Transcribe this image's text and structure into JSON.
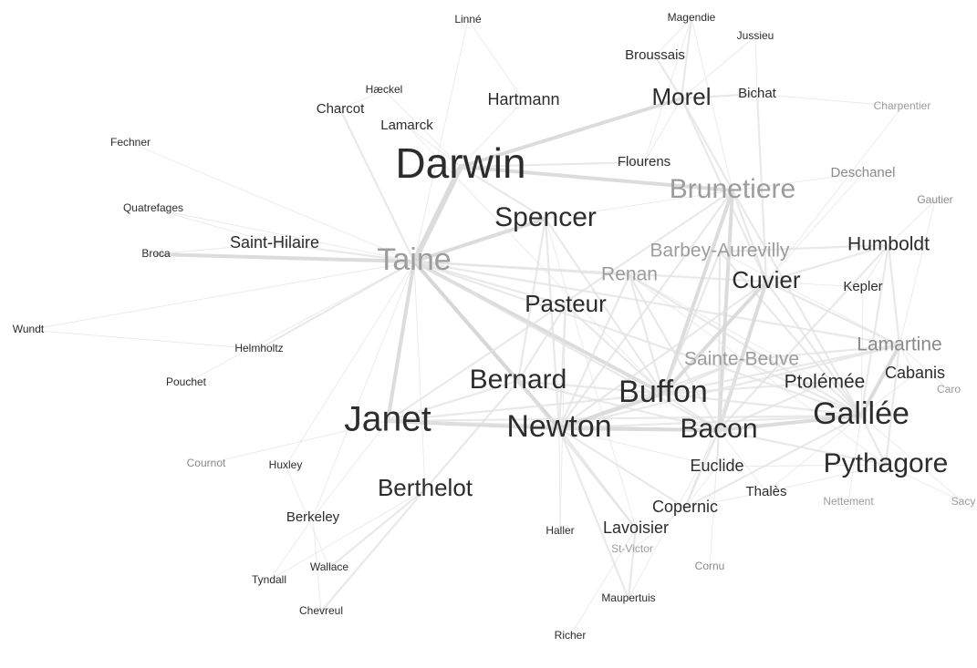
{
  "nodes": [
    {
      "id": "linne",
      "label": "Linné",
      "size": 1,
      "tone": "dark"
    },
    {
      "id": "magendie",
      "label": "Magendie",
      "size": 1,
      "tone": "dark"
    },
    {
      "id": "jussieu",
      "label": "Jussieu",
      "size": 1,
      "tone": "dark"
    },
    {
      "id": "broussais",
      "label": "Broussais",
      "size": 2,
      "tone": "dark"
    },
    {
      "id": "haeckel",
      "label": "Hæckel",
      "size": 1,
      "tone": "dark"
    },
    {
      "id": "charcot",
      "label": "Charcot",
      "size": 2,
      "tone": "dark"
    },
    {
      "id": "hartmann",
      "label": "Hartmann",
      "size": 3,
      "tone": "dark"
    },
    {
      "id": "morel",
      "label": "Morel",
      "size": 5,
      "tone": "dark"
    },
    {
      "id": "bichat",
      "label": "Bichat",
      "size": 2,
      "tone": "dark"
    },
    {
      "id": "charpentier",
      "label": "Charpentier",
      "size": 1,
      "tone": "light"
    },
    {
      "id": "lamarck",
      "label": "Lamarck",
      "size": 2,
      "tone": "dark"
    },
    {
      "id": "fechner",
      "label": "Fechner",
      "size": 1,
      "tone": "dark"
    },
    {
      "id": "darwin",
      "label": "Darwin",
      "size": 9,
      "tone": "dark"
    },
    {
      "id": "flourens",
      "label": "Flourens",
      "size": 2,
      "tone": "dark"
    },
    {
      "id": "deschanel",
      "label": "Deschanel",
      "size": 2,
      "tone": "mid"
    },
    {
      "id": "brunetiere",
      "label": "Brunetiere",
      "size": 6,
      "tone": "light"
    },
    {
      "id": "gautier",
      "label": "Gautier",
      "size": 1,
      "tone": "mid"
    },
    {
      "id": "quatrefages",
      "label": "Quatrefages",
      "size": 1,
      "tone": "dark"
    },
    {
      "id": "spencer",
      "label": "Spencer",
      "size": 6,
      "tone": "dark"
    },
    {
      "id": "saint-hilaire",
      "label": "Saint-Hilaire",
      "size": 3,
      "tone": "dark"
    },
    {
      "id": "broca",
      "label": "Broca",
      "size": 1,
      "tone": "dark"
    },
    {
      "id": "taine",
      "label": "Taine",
      "size": 7,
      "tone": "light"
    },
    {
      "id": "barbey-aurevilly",
      "label": "Barbey-Aurevilly",
      "size": 4,
      "tone": "light"
    },
    {
      "id": "humboldt",
      "label": "Humboldt",
      "size": 4,
      "tone": "dark"
    },
    {
      "id": "renan",
      "label": "Renan",
      "size": 4,
      "tone": "light"
    },
    {
      "id": "cuvier",
      "label": "Cuvier",
      "size": 5,
      "tone": "dark"
    },
    {
      "id": "kepler",
      "label": "Kepler",
      "size": 2,
      "tone": "dark"
    },
    {
      "id": "pasteur",
      "label": "Pasteur",
      "size": 5,
      "tone": "dark"
    },
    {
      "id": "wundt",
      "label": "Wundt",
      "size": 1,
      "tone": "dark"
    },
    {
      "id": "helmholtz",
      "label": "Helmholtz",
      "size": 1,
      "tone": "dark"
    },
    {
      "id": "sainte-beuve",
      "label": "Sainte-Beuve",
      "size": 4,
      "tone": "light"
    },
    {
      "id": "lamartine",
      "label": "Lamartine",
      "size": 4,
      "tone": "mid"
    },
    {
      "id": "pouchet",
      "label": "Pouchet",
      "size": 1,
      "tone": "dark"
    },
    {
      "id": "bernard",
      "label": "Bernard",
      "size": 6,
      "tone": "dark"
    },
    {
      "id": "buffon",
      "label": "Buffon",
      "size": 7,
      "tone": "dark"
    },
    {
      "id": "ptolemee",
      "label": "Ptolémée",
      "size": 4,
      "tone": "dark"
    },
    {
      "id": "cabanis",
      "label": "Cabanis",
      "size": 3,
      "tone": "dark"
    },
    {
      "id": "caro",
      "label": "Caro",
      "size": 1,
      "tone": "light"
    },
    {
      "id": "janet",
      "label": "Janet",
      "size": 8,
      "tone": "dark"
    },
    {
      "id": "newton",
      "label": "Newton",
      "size": 7,
      "tone": "dark"
    },
    {
      "id": "bacon",
      "label": "Bacon",
      "size": 6,
      "tone": "dark"
    },
    {
      "id": "galilee",
      "label": "Galilée",
      "size": 7,
      "tone": "dark"
    },
    {
      "id": "cournot",
      "label": "Cournot",
      "size": 1,
      "tone": "mid"
    },
    {
      "id": "huxley",
      "label": "Huxley",
      "size": 1,
      "tone": "dark"
    },
    {
      "id": "euclide",
      "label": "Euclide",
      "size": 3,
      "tone": "dark"
    },
    {
      "id": "pythagore",
      "label": "Pythagore",
      "size": 6,
      "tone": "dark"
    },
    {
      "id": "berthelot",
      "label": "Berthelot",
      "size": 5,
      "tone": "dark"
    },
    {
      "id": "thales",
      "label": "Thalès",
      "size": 2,
      "tone": "dark"
    },
    {
      "id": "nettement",
      "label": "Nettement",
      "size": 1,
      "tone": "light"
    },
    {
      "id": "sacy",
      "label": "Sacy",
      "size": 1,
      "tone": "light"
    },
    {
      "id": "copernic",
      "label": "Copernic",
      "size": 3,
      "tone": "dark"
    },
    {
      "id": "berkeley",
      "label": "Berkeley",
      "size": 2,
      "tone": "dark"
    },
    {
      "id": "haller",
      "label": "Haller",
      "size": 1,
      "tone": "dark"
    },
    {
      "id": "lavoisier",
      "label": "Lavoisier",
      "size": 3,
      "tone": "dark"
    },
    {
      "id": "st-victor",
      "label": "St-Victor",
      "size": 1,
      "tone": "light"
    },
    {
      "id": "tyndall",
      "label": "Tyndall",
      "size": 1,
      "tone": "dark"
    },
    {
      "id": "wallace",
      "label": "Wallace",
      "size": 1,
      "tone": "dark"
    },
    {
      "id": "cornu",
      "label": "Cornu",
      "size": 1,
      "tone": "mid"
    },
    {
      "id": "chevreul",
      "label": "Chevreul",
      "size": 1,
      "tone": "dark"
    },
    {
      "id": "maupertuis",
      "label": "Maupertuis",
      "size": 1,
      "tone": "dark"
    },
    {
      "id": "richer",
      "label": "Richer",
      "size": 1,
      "tone": "dark"
    }
  ],
  "edges": [
    [
      "taine",
      "darwin",
      4
    ],
    [
      "taine",
      "spencer",
      3
    ],
    [
      "taine",
      "broca",
      3
    ],
    [
      "taine",
      "saint-hilaire",
      2
    ],
    [
      "taine",
      "helmholtz",
      2
    ],
    [
      "taine",
      "janet",
      3
    ],
    [
      "taine",
      "bernard",
      3
    ],
    [
      "taine",
      "newton",
      3
    ],
    [
      "taine",
      "buffon",
      3
    ],
    [
      "taine",
      "bacon",
      2
    ],
    [
      "taine",
      "charcot",
      2
    ],
    [
      "taine",
      "pasteur",
      2
    ],
    [
      "taine",
      "cuvier",
      2
    ],
    [
      "taine",
      "linne",
      1
    ],
    [
      "taine",
      "fechner",
      1
    ],
    [
      "taine",
      "quatrefages",
      1
    ],
    [
      "taine",
      "wundt",
      1
    ],
    [
      "taine",
      "lamartine",
      2
    ],
    [
      "taine",
      "galilee",
      2
    ],
    [
      "taine",
      "berkeley",
      1
    ],
    [
      "taine",
      "renan",
      2
    ],
    [
      "taine",
      "berthelot",
      1
    ],
    [
      "taine",
      "pouchet",
      1
    ],
    [
      "taine",
      "huxley",
      1
    ],
    [
      "darwin",
      "morel",
      3
    ],
    [
      "darwin",
      "brunetiere",
      3
    ],
    [
      "darwin",
      "flourens",
      2
    ],
    [
      "darwin",
      "spencer",
      2
    ],
    [
      "darwin",
      "hartmann",
      1
    ],
    [
      "darwin",
      "lamarck",
      1
    ],
    [
      "brunetiere",
      "buffon",
      3
    ],
    [
      "brunetiere",
      "bacon",
      3
    ],
    [
      "brunetiere",
      "newton",
      2
    ],
    [
      "brunetiere",
      "janet",
      2
    ],
    [
      "brunetiere",
      "morel",
      2
    ],
    [
      "brunetiere",
      "galilee",
      2
    ],
    [
      "brunetiere",
      "cuvier",
      2
    ],
    [
      "brunetiere",
      "magendie",
      1
    ],
    [
      "brunetiere",
      "deschanel",
      1
    ],
    [
      "morel",
      "magendie",
      2
    ],
    [
      "morel",
      "broussais",
      2
    ],
    [
      "morel",
      "bichat",
      2
    ],
    [
      "morel",
      "cuvier",
      2
    ],
    [
      "morel",
      "jussieu",
      1
    ],
    [
      "bichat",
      "jussieu",
      1
    ],
    [
      "bichat",
      "cuvier",
      2
    ],
    [
      "bichat",
      "charpentier",
      1
    ],
    [
      "spencer",
      "newton",
      2
    ],
    [
      "spencer",
      "bernard",
      2
    ],
    [
      "spencer",
      "buffon",
      2
    ],
    [
      "spencer",
      "lavoisier",
      1
    ],
    [
      "pasteur",
      "bernard",
      2
    ],
    [
      "pasteur",
      "newton",
      2
    ],
    [
      "pasteur",
      "buffon",
      2
    ],
    [
      "pasteur",
      "haller",
      1
    ],
    [
      "renan",
      "bacon",
      2
    ],
    [
      "renan",
      "buffon",
      2
    ],
    [
      "renan",
      "galilee",
      2
    ],
    [
      "renan",
      "newton",
      2
    ],
    [
      "renan",
      "pythagore",
      1
    ],
    [
      "renan",
      "ptolemee",
      1
    ],
    [
      "barbey-aurevilly",
      "buffon",
      2
    ],
    [
      "barbey-aurevilly",
      "bacon",
      2
    ],
    [
      "barbey-aurevilly",
      "humboldt",
      2
    ],
    [
      "barbey-aurevilly",
      "galilee",
      2
    ],
    [
      "barbey-aurevilly",
      "lamartine",
      1
    ],
    [
      "cuvier",
      "bacon",
      3
    ],
    [
      "cuvier",
      "buffon",
      3
    ],
    [
      "cuvier",
      "newton",
      2
    ],
    [
      "cuvier",
      "lamartine",
      2
    ],
    [
      "cuvier",
      "humboldt",
      2
    ],
    [
      "cuvier",
      "galilee",
      2
    ],
    [
      "cuvier",
      "kepler",
      1
    ],
    [
      "sainte-beuve",
      "buffon",
      2
    ],
    [
      "sainte-beuve",
      "newton",
      2
    ],
    [
      "sainte-beuve",
      "bacon",
      2
    ],
    [
      "sainte-beuve",
      "galilee",
      2
    ],
    [
      "sainte-beuve",
      "copernic",
      1
    ],
    [
      "sainte-beuve",
      "lamartine",
      2
    ],
    [
      "lamartine",
      "galilee",
      3
    ],
    [
      "lamartine",
      "pythagore",
      2
    ],
    [
      "lamartine",
      "humboldt",
      2
    ],
    [
      "lamartine",
      "newton",
      2
    ],
    [
      "lamartine",
      "cabanis",
      1
    ],
    [
      "lamartine",
      "caro",
      1
    ],
    [
      "lamartine",
      "buffon",
      2
    ],
    [
      "humboldt",
      "galilee",
      2
    ],
    [
      "humboldt",
      "kepler",
      1
    ],
    [
      "humboldt",
      "gautier",
      1
    ],
    [
      "humboldt",
      "bacon",
      2
    ],
    [
      "bernard",
      "newton",
      3
    ],
    [
      "bernard",
      "buffon",
      2
    ],
    [
      "bernard",
      "berthelot",
      2
    ],
    [
      "bernard",
      "lavoisier",
      2
    ],
    [
      "bernard",
      "bacon",
      2
    ],
    [
      "bernard",
      "janet",
      2
    ],
    [
      "janet",
      "newton",
      3
    ],
    [
      "janet",
      "bacon",
      2
    ],
    [
      "janet",
      "buffon",
      2
    ],
    [
      "janet",
      "galilee",
      2
    ],
    [
      "janet",
      "berkeley",
      1
    ],
    [
      "janet",
      "cournot",
      1
    ],
    [
      "newton",
      "buffon",
      3
    ],
    [
      "newton",
      "bacon",
      3
    ],
    [
      "newton",
      "galilee",
      2
    ],
    [
      "newton",
      "lavoisier",
      2
    ],
    [
      "newton",
      "copernic",
      2
    ],
    [
      "newton",
      "maupertuis",
      2
    ],
    [
      "newton",
      "haller",
      1
    ],
    [
      "newton",
      "euclide",
      1
    ],
    [
      "buffon",
      "bacon",
      2
    ],
    [
      "buffon",
      "galilee",
      2
    ],
    [
      "buffon",
      "ptolemee",
      2
    ],
    [
      "buffon",
      "lamarck",
      1
    ],
    [
      "bacon",
      "galilee",
      3
    ],
    [
      "bacon",
      "pythagore",
      2
    ],
    [
      "bacon",
      "euclide",
      2
    ],
    [
      "bacon",
      "copernic",
      2
    ],
    [
      "bacon",
      "thales",
      1
    ],
    [
      "bacon",
      "ptolemee",
      2
    ],
    [
      "bacon",
      "cornu",
      1
    ],
    [
      "bacon",
      "maupertuis",
      1
    ],
    [
      "galilee",
      "pythagore",
      2
    ],
    [
      "galilee",
      "ptolemee",
      2
    ],
    [
      "galilee",
      "copernic",
      2
    ],
    [
      "galilee",
      "cabanis",
      1
    ],
    [
      "galilee",
      "kepler",
      1
    ],
    [
      "galilee",
      "thales",
      1
    ],
    [
      "galilee",
      "nettement",
      1
    ],
    [
      "galilee",
      "sacy",
      1
    ],
    [
      "pythagore",
      "thales",
      1
    ],
    [
      "pythagore",
      "euclide",
      1
    ],
    [
      "pythagore",
      "sacy",
      1
    ],
    [
      "berthelot",
      "wallace",
      2
    ],
    [
      "berthelot",
      "chevreul",
      2
    ],
    [
      "berthelot",
      "tyndall",
      1
    ],
    [
      "lavoisier",
      "maupertuis",
      2
    ],
    [
      "lavoisier",
      "richer",
      1
    ],
    [
      "lavoisier",
      "st-victor",
      1
    ],
    [
      "copernic",
      "euclide",
      1
    ],
    [
      "copernic",
      "thales",
      1
    ],
    [
      "copernic",
      "st-victor",
      1
    ],
    [
      "darwin",
      "haeckel",
      1
    ],
    [
      "charcot",
      "haeckel",
      1
    ],
    [
      "hartmann",
      "linne",
      1
    ],
    [
      "flourens",
      "magendie",
      1
    ],
    [
      "broussais",
      "magendie",
      1
    ],
    [
      "saint-hilaire",
      "broca",
      1
    ],
    [
      "saint-hilaire",
      "quatrefages",
      1
    ],
    [
      "helmholtz",
      "wundt",
      1
    ],
    [
      "berkeley",
      "tyndall",
      1
    ],
    [
      "berkeley",
      "chevreul",
      1
    ],
    [
      "huxley",
      "wallace",
      1
    ],
    [
      "deschanel",
      "cuvier",
      1
    ],
    [
      "gautier",
      "lamartine",
      1
    ],
    [
      "charpentier",
      "cuvier",
      1
    ],
    [
      "morel",
      "flourens",
      1
    ],
    [
      "spencer",
      "brunetiere",
      1
    ]
  ]
}
